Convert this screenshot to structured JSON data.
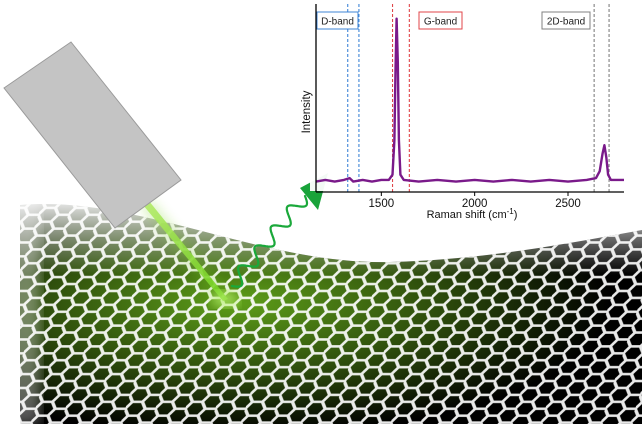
{
  "chart_data": {
    "type": "line",
    "xlabel_main": "Raman shift (cm",
    "xlabel_sup": "-1",
    "xlabel_close": ")",
    "ylabel": "Intensity",
    "xlim": [
      1150,
      2800
    ],
    "ylim": [
      0,
      1.05
    ],
    "x_ticks": [
      1500,
      2000,
      2500
    ],
    "series": [
      {
        "points": [
          [
            1150,
            0.06
          ],
          [
            1200,
            0.07
          ],
          [
            1250,
            0.06
          ],
          [
            1300,
            0.07
          ],
          [
            1330,
            0.08
          ],
          [
            1350,
            0.06
          ],
          [
            1400,
            0.07
          ],
          [
            1450,
            0.06
          ],
          [
            1500,
            0.07
          ],
          [
            1540,
            0.07
          ],
          [
            1560,
            0.1
          ],
          [
            1570,
            0.3
          ],
          [
            1576,
            0.7
          ],
          [
            1582,
            1.0
          ],
          [
            1588,
            0.75
          ],
          [
            1594,
            0.3
          ],
          [
            1602,
            0.1
          ],
          [
            1620,
            0.07
          ],
          [
            1700,
            0.06
          ],
          [
            1800,
            0.07
          ],
          [
            1900,
            0.06
          ],
          [
            2000,
            0.07
          ],
          [
            2100,
            0.06
          ],
          [
            2200,
            0.07
          ],
          [
            2300,
            0.06
          ],
          [
            2400,
            0.07
          ],
          [
            2500,
            0.06
          ],
          [
            2600,
            0.07
          ],
          [
            2650,
            0.08
          ],
          [
            2670,
            0.12
          ],
          [
            2685,
            0.22
          ],
          [
            2695,
            0.27
          ],
          [
            2705,
            0.2
          ],
          [
            2715,
            0.1
          ],
          [
            2730,
            0.07
          ],
          [
            2800,
            0.07
          ]
        ]
      }
    ],
    "bands": [
      {
        "label": "D-band",
        "lines": [
          1320,
          1380
        ],
        "color": "#3f85d6"
      },
      {
        "label": "G-band",
        "lines": [
          1560,
          1650
        ],
        "color": "#e0464a"
      },
      {
        "label": "2D-band",
        "lines": [
          2640,
          2720
        ],
        "color": "#808080"
      }
    ],
    "line_color": "#7a1a8a"
  },
  "colors": {
    "graphene_bonds": "#e8e8e8",
    "laser_green": "#7dd321",
    "photon_green": "#1aa83a",
    "instrument_gray": "#c4c4c4"
  }
}
